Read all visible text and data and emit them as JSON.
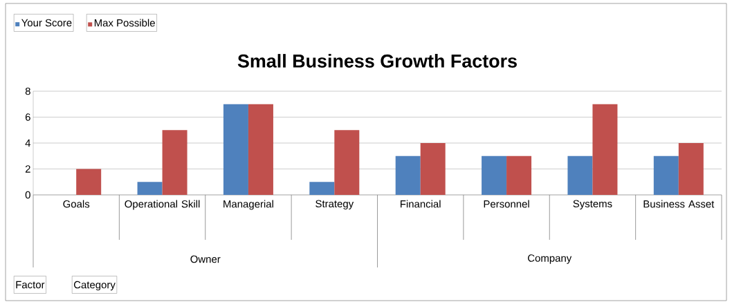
{
  "chart_data": {
    "type": "bar",
    "title": "Small Business Growth Factors",
    "categories": [
      "Goals",
      "Operational Skill",
      "Managerial",
      "Strategy",
      "Financial",
      "Personnel",
      "Systems",
      "Business Asset"
    ],
    "series": [
      {
        "name": "Your Score",
        "color": "#4f81bd",
        "values": [
          0,
          1,
          7,
          1,
          3,
          3,
          3,
          3
        ]
      },
      {
        "name": "Max Possible",
        "color": "#c0504d",
        "values": [
          2,
          5,
          7,
          5,
          4,
          3,
          7,
          4
        ]
      }
    ],
    "annotations": [
      "Owner",
      "Company",
      "Factor",
      "Category"
    ],
    "ylim": [
      0,
      8
    ],
    "yticks": [
      0,
      2,
      4,
      6,
      8
    ],
    "grid": "y",
    "legend": "top left"
  }
}
